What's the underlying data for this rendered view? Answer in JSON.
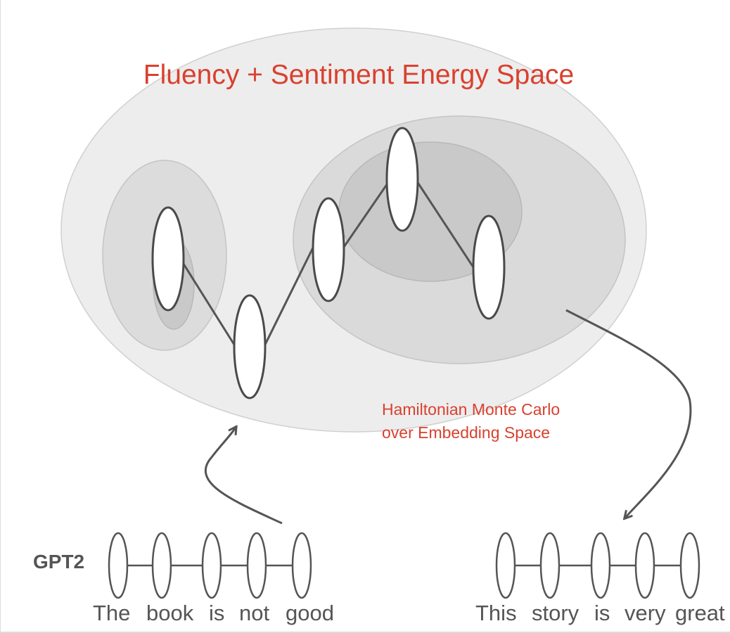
{
  "diagram": {
    "title": "Fluency + Sentiment Energy Space",
    "sampler_label": {
      "line1": "Hamiltonian Monte Carlo",
      "line2": "over Embedding Space"
    },
    "model_label": "GPT2",
    "input_sentence": {
      "words": [
        "The",
        "book",
        "is",
        "not",
        "good"
      ]
    },
    "output_sentence": {
      "words": [
        "This",
        "story",
        "is",
        "very",
        "great"
      ]
    },
    "colors": {
      "title": "#d9412f",
      "text": "#555555",
      "region_outer": "#ededed",
      "region_mid": "#d8d8d8",
      "region_inner": "#c8c8c8"
    }
  }
}
